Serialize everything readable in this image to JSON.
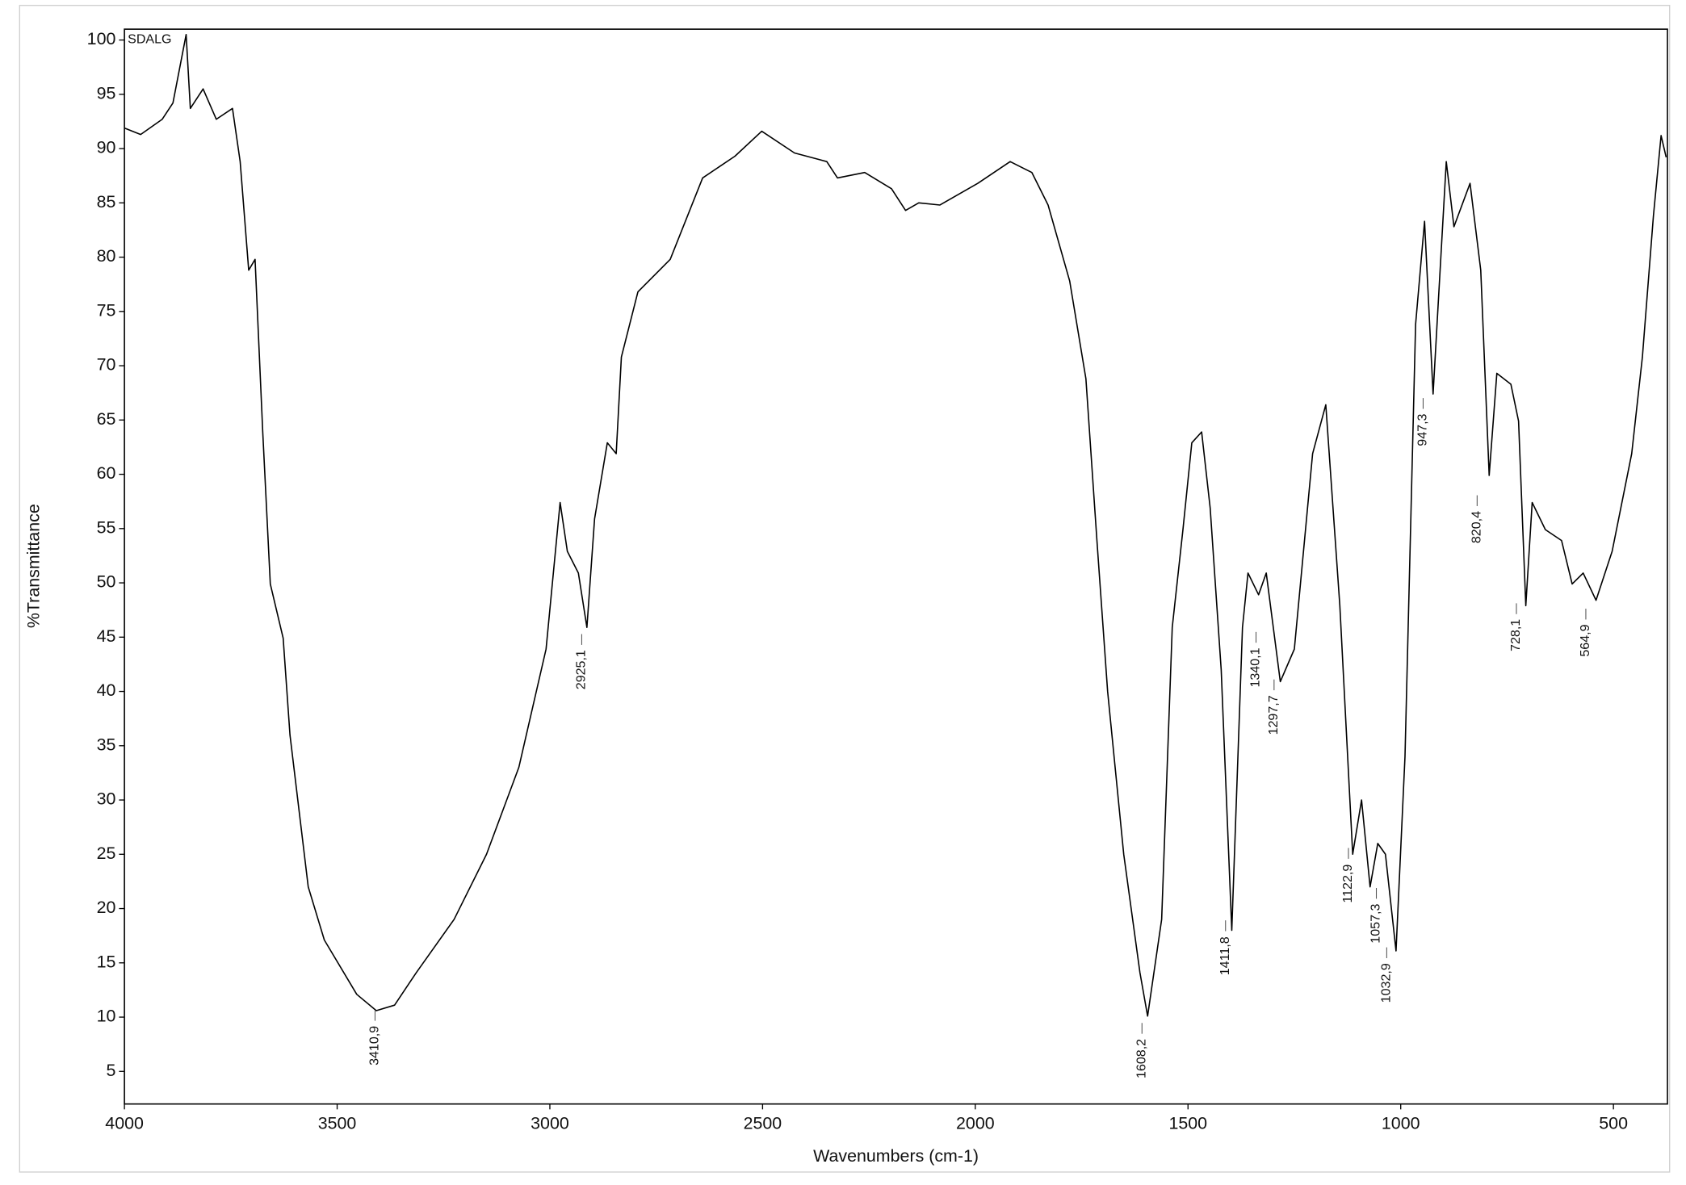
{
  "chart_data": {
    "type": "line",
    "sample_label": "SDALG",
    "xlabel": "Wavenumbers (cm-1)",
    "ylabel": "%Transmittance",
    "color": "#000000",
    "xlim": [
      4000,
      373
    ],
    "xticks": [
      4000,
      3500,
      3000,
      2500,
      2000,
      1500,
      1000,
      500
    ],
    "ylim": [
      2,
      101
    ],
    "yticks": [
      5,
      10,
      15,
      20,
      25,
      30,
      35,
      40,
      45,
      50,
      55,
      60,
      65,
      70,
      75,
      80,
      85,
      90,
      95,
      100
    ],
    "x": [
      4000,
      3962,
      3911,
      3886,
      3855,
      3845,
      3815,
      3784,
      3746,
      3728,
      3708,
      3693,
      3675,
      3657,
      3627,
      3611,
      3568,
      3530,
      3454,
      3408,
      3365,
      3314,
      3225,
      3149,
      3073,
      3009,
      2976,
      2959,
      2933,
      2913,
      2895,
      2865,
      2844,
      2832,
      2793,
      2717,
      2641,
      2565,
      2502,
      2425,
      2349,
      2324,
      2260,
      2197,
      2164,
      2133,
      2083,
      1994,
      1918,
      1867,
      1829,
      1778,
      1740,
      1714,
      1689,
      1651,
      1613,
      1595,
      1562,
      1537,
      1512,
      1491,
      1468,
      1448,
      1422,
      1397,
      1372,
      1359,
      1334,
      1316,
      1283,
      1250,
      1207,
      1176,
      1143,
      1113,
      1092,
      1072,
      1054,
      1036,
      1011,
      990,
      965,
      944,
      924,
      893,
      875,
      837,
      812,
      792,
      774,
      741,
      723,
      706,
      691,
      660,
      622,
      597,
      571,
      541,
      503,
      457,
      432,
      406,
      388,
      376
    ],
    "values": [
      91.9,
      91.3,
      92.7,
      94.2,
      100.5,
      93.7,
      95.5,
      92.7,
      93.7,
      88.8,
      78.8,
      79.8,
      63.9,
      49.9,
      44.9,
      36.0,
      22.0,
      17.1,
      12.1,
      10.6,
      11.1,
      14.1,
      19.0,
      25.0,
      33.0,
      43.9,
      57.4,
      52.9,
      50.9,
      45.9,
      55.9,
      62.9,
      61.9,
      70.8,
      76.8,
      79.8,
      87.3,
      89.3,
      91.6,
      89.6,
      88.8,
      87.3,
      87.8,
      86.3,
      84.3,
      85.0,
      84.8,
      86.8,
      88.8,
      87.8,
      84.8,
      77.8,
      68.8,
      53.9,
      40.0,
      25.0,
      14.1,
      10.1,
      19.0,
      45.9,
      54.9,
      62.9,
      63.9,
      56.9,
      42.0,
      18.0,
      45.9,
      50.9,
      48.9,
      50.9,
      40.9,
      43.9,
      61.9,
      66.4,
      47.9,
      25.0,
      30.0,
      22.0,
      26.0,
      25.0,
      16.1,
      34.0,
      73.8,
      83.3,
      67.4,
      88.8,
      82.8,
      86.8,
      78.8,
      59.9,
      69.3,
      68.3,
      64.9,
      47.9,
      57.4,
      54.9,
      53.9,
      49.9,
      50.9,
      48.4,
      52.9,
      61.9,
      70.8,
      83.8,
      91.2,
      89.2
    ],
    "annotations": [
      {
        "value": 3410.9,
        "label": "3410,9"
      },
      {
        "value": 2925.1,
        "label": "2925,1"
      },
      {
        "value": 1608.2,
        "label": "1608,2"
      },
      {
        "value": 1411.8,
        "label": "1411,8"
      },
      {
        "value": 1340.1,
        "label": "1340,1"
      },
      {
        "value": 1297.7,
        "label": "1297,7"
      },
      {
        "value": 1122.9,
        "label": "1122,9"
      },
      {
        "value": 1057.3,
        "label": "1057,3"
      },
      {
        "value": 1032.9,
        "label": "1032,9"
      },
      {
        "value": 947.3,
        "label": "947,3"
      },
      {
        "value": 820.4,
        "label": "820,4"
      },
      {
        "value": 728.1,
        "label": "728,1"
      },
      {
        "value": 564.9,
        "label": "564,9"
      }
    ]
  }
}
